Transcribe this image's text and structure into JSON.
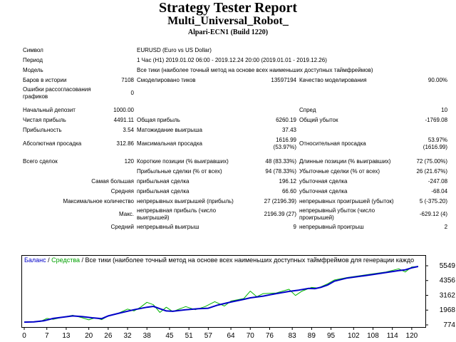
{
  "report": {
    "title": "Strategy Tester Report",
    "subtitle": "Multi_Universal_Robot_",
    "build": "Alpari-ECN1 (Build 1220)"
  },
  "info": {
    "symbol_label": "Символ",
    "symbol_value": "EURUSD (Euro vs US Dollar)",
    "period_label": "Период",
    "period_value": "1 Час (H1) 2019.01.02 06:00 - 2019.12.24 20:00 (2019.01.01 - 2019.12.26)",
    "model_label": "Модель",
    "model_value": "Все тики (наиболее точный метод на основе всех наименьших доступных таймфреймов)",
    "bars_label": "Баров в истории",
    "bars_value": "7108",
    "ticks_label": "Смоделировано тиков",
    "ticks_value": "13597194",
    "quality_label": "Качество моделирования",
    "quality_value": "90.00%",
    "errors_label": "Ошибки рассогласования графиков",
    "errors_value": "0"
  },
  "results": {
    "deposit_label": "Начальный депозит",
    "deposit_value": "1000.00",
    "spread_label": "Спред",
    "spread_value": "10",
    "net_label": "Чистая прибыль",
    "net_value": "4491.11",
    "gross_profit_label": "Общая прибыль",
    "gross_profit_value": "6260.19",
    "gross_loss_label": "Общий убыток",
    "gross_loss_value": "-1769.08",
    "pf_label": "Прибыльность",
    "pf_value": "3.54",
    "payoff_label": "Матожидание выигрыша",
    "payoff_value": "37.43",
    "abs_dd_label": "Абсолютная просадка",
    "abs_dd_value": "312.86",
    "max_dd_label": "Максимальная просадка",
    "max_dd_value": "1616.99",
    "max_dd_pct": "(53.97%)",
    "rel_dd_label": "Относительная просадка",
    "rel_dd_value": "53.97%",
    "rel_dd_abs": "(1616.99)",
    "total_label": "Всего сделок",
    "total_value": "120",
    "short_label": "Короткие позиции (% выигравших)",
    "short_value": "48 (83.33%)",
    "long_label": "Длинные позиции (% выигравших)",
    "long_value": "72 (75.00%)",
    "profit_trades_label": "Прибыльные сделки (% от всех)",
    "profit_trades_value": "94 (78.33%)",
    "loss_trades_label": "Убыточные сделки (% от всех)",
    "loss_trades_value": "26 (21.67%)",
    "largest_label": "Самая большая",
    "largest_profit_label": "прибыльная сделка",
    "largest_profit_value": "196.12",
    "largest_loss_label": "убыточная сделка",
    "largest_loss_value": "-247.08",
    "average_label": "Средняя",
    "avg_profit_label": "прибыльная сделка",
    "avg_profit_value": "66.60",
    "avg_loss_label": "убыточная сделка",
    "avg_loss_value": "-68.04",
    "maxcount_label": "Максимальное количество",
    "cons_wins_label": "непрерывных выигрышей (прибыль)",
    "cons_wins_value": "27 (2196.39)",
    "cons_losses_label": "непрерывных проигрышей (убыток)",
    "cons_losses_value": "5 (-375.20)",
    "max_label": "Макс.",
    "cons_profit_label": "непрерывная прибыль (число выигрышей)",
    "cons_profit_value": "2196.39 (27)",
    "cons_loss_label": "непрерывный убыток (число проигрышей)",
    "cons_loss_value": "-629.12 (4)",
    "avg2_label": "Средний",
    "avg_wins_label": "непрерывный выигрыш",
    "avg_wins_value": "9",
    "avg_losses_label": "непрерывный проигрыш",
    "avg_losses_value": "2"
  },
  "legend": {
    "balance": "Баланс",
    "slash1": " / ",
    "equity": "Средства",
    "rest": " / Все тики (наиболее точный метод на основе всех наименьших доступных таймфреймов для генерации каждо"
  },
  "chart_data": {
    "type": "line",
    "x_ticks": [
      0,
      7,
      13,
      20,
      26,
      32,
      38,
      45,
      51,
      57,
      64,
      70,
      76,
      83,
      89,
      95,
      102,
      108,
      114,
      120
    ],
    "y_ticks": [
      5549,
      4356,
      3162,
      1968,
      774
    ],
    "xlim": [
      0,
      124
    ],
    "ylim": [
      774,
      5549
    ],
    "grid": false,
    "colors": {
      "balance": "#0000c8",
      "equity": "#00b400"
    },
    "series": [
      {
        "name": "Баланс",
        "points": [
          [
            0,
            1000
          ],
          [
            3,
            1020
          ],
          [
            6,
            1100
          ],
          [
            9,
            1300
          ],
          [
            12,
            1400
          ],
          [
            15,
            1500
          ],
          [
            18,
            1440
          ],
          [
            21,
            1350
          ],
          [
            24,
            1280
          ],
          [
            26,
            1500
          ],
          [
            30,
            1760
          ],
          [
            34,
            2000
          ],
          [
            38,
            2200
          ],
          [
            40,
            2270
          ],
          [
            42,
            2080
          ],
          [
            44,
            1900
          ],
          [
            46,
            1870
          ],
          [
            50,
            2000
          ],
          [
            54,
            2080
          ],
          [
            57,
            2120
          ],
          [
            60,
            2380
          ],
          [
            64,
            2620
          ],
          [
            68,
            2840
          ],
          [
            70,
            2960
          ],
          [
            74,
            3100
          ],
          [
            78,
            3300
          ],
          [
            82,
            3480
          ],
          [
            85,
            3580
          ],
          [
            88,
            3720
          ],
          [
            90,
            3700
          ],
          [
            92,
            3820
          ],
          [
            94,
            4000
          ],
          [
            96,
            4300
          ],
          [
            100,
            4560
          ],
          [
            104,
            4700
          ],
          [
            108,
            4840
          ],
          [
            112,
            5000
          ],
          [
            116,
            5160
          ],
          [
            118,
            5220
          ],
          [
            120,
            5380
          ],
          [
            122,
            5491
          ]
        ]
      },
      {
        "name": "Средства",
        "points": [
          [
            0,
            1000
          ],
          [
            5,
            1050
          ],
          [
            7,
            1300
          ],
          [
            9,
            1220
          ],
          [
            12,
            1400
          ],
          [
            15,
            1550
          ],
          [
            18,
            1350
          ],
          [
            20,
            1180
          ],
          [
            22,
            1350
          ],
          [
            24,
            1200
          ],
          [
            26,
            1500
          ],
          [
            29,
            1700
          ],
          [
            32,
            2050
          ],
          [
            34,
            1900
          ],
          [
            36,
            2200
          ],
          [
            38,
            2600
          ],
          [
            40,
            2400
          ],
          [
            42,
            1780
          ],
          [
            44,
            2200
          ],
          [
            46,
            1850
          ],
          [
            50,
            2250
          ],
          [
            53,
            2000
          ],
          [
            56,
            2250
          ],
          [
            59,
            2650
          ],
          [
            62,
            2300
          ],
          [
            64,
            2700
          ],
          [
            68,
            2900
          ],
          [
            70,
            3500
          ],
          [
            72,
            3050
          ],
          [
            74,
            3300
          ],
          [
            78,
            3350
          ],
          [
            82,
            3650
          ],
          [
            84,
            3150
          ],
          [
            86,
            3500
          ],
          [
            89,
            3800
          ],
          [
            91,
            3750
          ],
          [
            94,
            4100
          ],
          [
            96,
            4400
          ],
          [
            100,
            4600
          ],
          [
            104,
            4750
          ],
          [
            108,
            4900
          ],
          [
            112,
            5050
          ],
          [
            116,
            5300
          ],
          [
            118,
            5050
          ],
          [
            120,
            5450
          ],
          [
            122,
            5500
          ]
        ]
      }
    ]
  }
}
